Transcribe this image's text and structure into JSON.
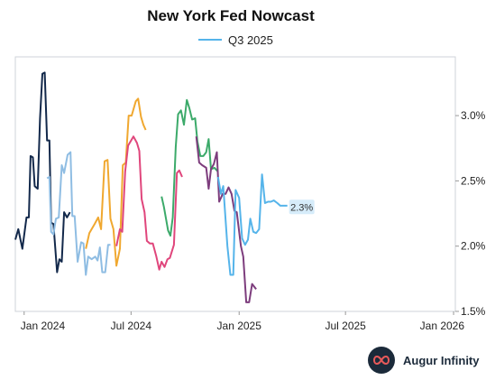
{
  "brand": {
    "name": "Augur Infinity",
    "logo_icon": "infinity-icon"
  },
  "chart_data": {
    "type": "line",
    "title": "New York Fed Nowcast",
    "legend": {
      "label": "Q3 2025",
      "color": "#55b4ea",
      "placement": "top-center"
    },
    "xlabel": "",
    "ylabel": "",
    "x_range": [
      "2023-12-17",
      "2026-01-04"
    ],
    "ylim": [
      1.5,
      3.45
    ],
    "y_axis_side": "right",
    "y_ticks": [
      {
        "value": 1.5,
        "label": "1.5%"
      },
      {
        "value": 2.0,
        "label": "2.0%"
      },
      {
        "value": 2.5,
        "label": "2.5%"
      },
      {
        "value": 3.0,
        "label": "3.0%"
      }
    ],
    "x_ticks": [
      {
        "date": "2024-01-01",
        "label": "Jan 2024"
      },
      {
        "date": "2024-07-01",
        "label": "Jul 2024"
      },
      {
        "date": "2025-01-01",
        "label": "Jan 2025"
      },
      {
        "date": "2025-07-01",
        "label": "Jul 2025"
      },
      {
        "date": "2026-01-01",
        "label": "Jan 2026"
      }
    ],
    "grid": false,
    "end_label": {
      "series": "Q3 2025",
      "text": "2.3%",
      "value": 2.3
    },
    "series": [
      {
        "color": "#13294b",
        "points": [
          [
            "2023-12-17",
            2.05
          ],
          [
            "2023-12-22",
            2.13
          ],
          [
            "2023-12-29",
            1.98
          ],
          [
            "2024-01-05",
            2.22
          ],
          [
            "2024-01-09",
            2.22
          ],
          [
            "2024-01-12",
            2.69
          ],
          [
            "2024-01-16",
            2.68
          ],
          [
            "2024-01-19",
            2.46
          ],
          [
            "2024-01-24",
            2.44
          ],
          [
            "2024-01-28",
            2.98
          ],
          [
            "2024-02-01",
            3.32
          ],
          [
            "2024-02-05",
            3.33
          ],
          [
            "2024-02-09",
            2.81
          ],
          [
            "2024-02-13",
            2.81
          ],
          [
            "2024-02-16",
            2.18
          ],
          [
            "2024-02-20",
            2.17
          ],
          [
            "2024-02-26",
            1.8
          ],
          [
            "2024-03-01",
            1.9
          ],
          [
            "2024-03-05",
            1.88
          ],
          [
            "2024-03-09",
            2.26
          ],
          [
            "2024-03-14",
            2.22
          ],
          [
            "2024-03-19",
            2.26
          ]
        ]
      },
      {
        "color": "#8fbde3",
        "points": [
          [
            "2024-02-09",
            2.52
          ],
          [
            "2024-02-13",
            2.53
          ],
          [
            "2024-02-16",
            2.11
          ],
          [
            "2024-02-20",
            2.09
          ],
          [
            "2024-02-24",
            2.21
          ],
          [
            "2024-02-29",
            2.22
          ],
          [
            "2024-03-05",
            2.62
          ],
          [
            "2024-03-09",
            2.56
          ],
          [
            "2024-03-15",
            2.7
          ],
          [
            "2024-03-20",
            2.72
          ],
          [
            "2024-03-23",
            2.23
          ],
          [
            "2024-03-27",
            2.23
          ],
          [
            "2024-04-01",
            1.88
          ],
          [
            "2024-04-07",
            2.03
          ],
          [
            "2024-04-11",
            2.02
          ],
          [
            "2024-04-15",
            1.78
          ],
          [
            "2024-04-19",
            1.92
          ],
          [
            "2024-04-25",
            1.9
          ],
          [
            "2024-05-01",
            1.92
          ],
          [
            "2024-05-05",
            1.89
          ],
          [
            "2024-05-09",
            1.99
          ],
          [
            "2024-05-13",
            1.8
          ],
          [
            "2024-05-18",
            1.8
          ],
          [
            "2024-05-23",
            2.01
          ],
          [
            "2024-05-27",
            2.01
          ]
        ]
      },
      {
        "color": "#f0a830",
        "points": [
          [
            "2024-04-15",
            1.98
          ],
          [
            "2024-04-21",
            2.1
          ],
          [
            "2024-04-30",
            2.17
          ],
          [
            "2024-05-06",
            2.22
          ],
          [
            "2024-05-11",
            2.13
          ],
          [
            "2024-05-17",
            2.65
          ],
          [
            "2024-05-22",
            2.66
          ],
          [
            "2024-05-27",
            2.21
          ],
          [
            "2024-06-01",
            2.13
          ],
          [
            "2024-06-06",
            1.85
          ],
          [
            "2024-06-12",
            1.98
          ],
          [
            "2024-06-17",
            2.62
          ],
          [
            "2024-06-22",
            2.64
          ],
          [
            "2024-06-27",
            3.0
          ],
          [
            "2024-07-02",
            3.0
          ],
          [
            "2024-07-09",
            3.11
          ],
          [
            "2024-07-13",
            3.13
          ],
          [
            "2024-07-18",
            2.99
          ],
          [
            "2024-07-22",
            2.93
          ],
          [
            "2024-07-26",
            2.89
          ]
        ]
      },
      {
        "color": "#e0467c",
        "points": [
          [
            "2024-06-06",
            2.0
          ],
          [
            "2024-06-12",
            2.13
          ],
          [
            "2024-06-16",
            2.11
          ],
          [
            "2024-06-21",
            2.57
          ],
          [
            "2024-06-26",
            2.77
          ],
          [
            "2024-07-05",
            2.84
          ],
          [
            "2024-07-11",
            2.79
          ],
          [
            "2024-07-15",
            2.73
          ],
          [
            "2024-07-19",
            2.36
          ],
          [
            "2024-07-24",
            2.26
          ],
          [
            "2024-07-28",
            2.04
          ],
          [
            "2024-08-02",
            2.02
          ],
          [
            "2024-08-07",
            2.02
          ],
          [
            "2024-08-13",
            1.92
          ],
          [
            "2024-08-18",
            1.82
          ],
          [
            "2024-08-22",
            1.88
          ],
          [
            "2024-08-27",
            1.84
          ],
          [
            "2024-09-01",
            1.9
          ],
          [
            "2024-09-05",
            1.91
          ],
          [
            "2024-09-12",
            2.01
          ],
          [
            "2024-09-17",
            2.56
          ],
          [
            "2024-09-21",
            2.58
          ],
          [
            "2024-09-26",
            2.53
          ]
        ]
      },
      {
        "color": "#3caa6a",
        "points": [
          [
            "2024-08-22",
            2.38
          ],
          [
            "2024-08-26",
            2.3
          ],
          [
            "2024-09-02",
            2.12
          ],
          [
            "2024-09-06",
            2.08
          ],
          [
            "2024-09-10",
            2.22
          ],
          [
            "2024-09-15",
            2.76
          ],
          [
            "2024-09-19",
            3.01
          ],
          [
            "2024-09-24",
            3.04
          ],
          [
            "2024-09-29",
            2.93
          ],
          [
            "2024-10-04",
            3.12
          ],
          [
            "2024-10-08",
            3.06
          ],
          [
            "2024-10-13",
            2.97
          ],
          [
            "2024-10-18",
            2.98
          ],
          [
            "2024-10-22",
            2.8
          ],
          [
            "2024-10-27",
            2.69
          ],
          [
            "2024-11-01",
            2.69
          ],
          [
            "2024-11-06",
            2.72
          ],
          [
            "2024-11-10",
            2.82
          ],
          [
            "2024-11-14",
            2.59
          ],
          [
            "2024-11-20",
            2.6
          ],
          [
            "2024-11-26",
            2.57
          ]
        ]
      },
      {
        "color": "#7d3d7d",
        "points": [
          [
            "2024-10-20",
            2.84
          ],
          [
            "2024-10-25",
            2.64
          ],
          [
            "2024-10-30",
            2.62
          ],
          [
            "2024-11-06",
            2.6
          ],
          [
            "2024-11-10",
            2.44
          ],
          [
            "2024-11-14",
            2.59
          ],
          [
            "2024-11-19",
            2.63
          ],
          [
            "2024-11-24",
            2.72
          ],
          [
            "2024-11-28",
            2.34
          ],
          [
            "2024-12-04",
            2.4
          ],
          [
            "2024-12-09",
            2.4
          ],
          [
            "2024-12-14",
            2.45
          ],
          [
            "2024-12-19",
            2.4
          ],
          [
            "2024-12-24",
            2.27
          ],
          [
            "2024-12-28",
            2.26
          ],
          [
            "2025-01-04",
            2.0
          ],
          [
            "2025-01-08",
            1.92
          ],
          [
            "2025-01-13",
            1.57
          ],
          [
            "2025-01-18",
            1.57
          ],
          [
            "2025-01-23",
            1.71
          ],
          [
            "2025-01-30",
            1.67
          ]
        ]
      },
      {
        "name": "Q3 2025",
        "color": "#55b4ea",
        "points": [
          [
            "2024-11-26",
            2.53
          ],
          [
            "2024-12-01",
            2.4
          ],
          [
            "2024-12-05",
            2.46
          ],
          [
            "2024-12-12",
            2.0
          ],
          [
            "2024-12-17",
            1.78
          ],
          [
            "2024-12-22",
            1.78
          ],
          [
            "2024-12-26",
            2.43
          ],
          [
            "2025-01-01",
            2.37
          ],
          [
            "2025-01-06",
            2.06
          ],
          [
            "2025-01-11",
            2.01
          ],
          [
            "2025-01-16",
            2.05
          ],
          [
            "2025-01-20",
            2.21
          ],
          [
            "2025-01-25",
            2.11
          ],
          [
            "2025-01-30",
            2.1
          ],
          [
            "2025-02-04",
            2.13
          ],
          [
            "2025-02-09",
            2.55
          ],
          [
            "2025-02-14",
            2.33
          ],
          [
            "2025-02-19",
            2.34
          ],
          [
            "2025-02-24",
            2.34
          ],
          [
            "2025-03-01",
            2.35
          ],
          [
            "2025-03-07",
            2.33
          ],
          [
            "2025-03-12",
            2.31
          ],
          [
            "2025-03-18",
            2.31
          ],
          [
            "2025-03-24",
            2.31
          ]
        ]
      }
    ]
  }
}
